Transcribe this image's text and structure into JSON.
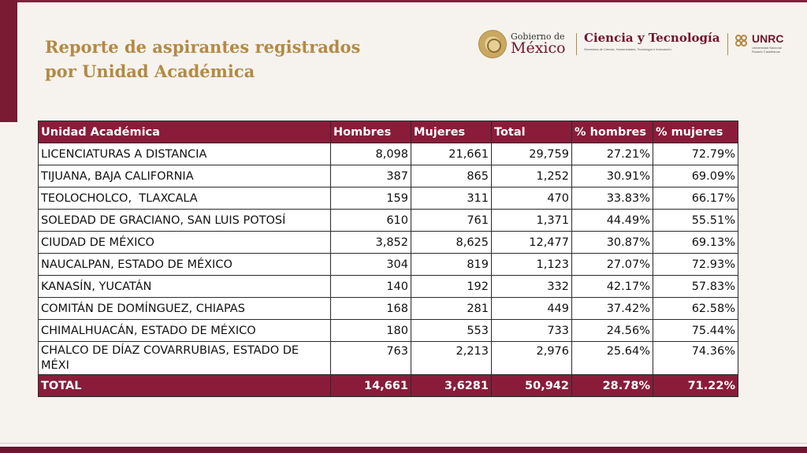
{
  "title": {
    "line1": "Reporte de aspirantes registrados",
    "line2": "por Unidad Académica"
  },
  "logos": {
    "gobierno_small": "Gobierno de",
    "gobierno_big": "México",
    "ciencia": "Ciencia y Tecnología",
    "ciencia_sub": "Secretaría de Ciencia, Humanidades, Tecnología e Innovación",
    "unrc": "UNRC",
    "unrc_sub_1": "Universidad Nacional",
    "unrc_sub_2": "Rosario Castellanos"
  },
  "table": {
    "headers": [
      "Unidad Académica",
      "Hombres",
      "Mujeres",
      "Total",
      "% hombres",
      "% mujeres"
    ],
    "rows": [
      [
        "LICENCIATURAS A DISTANCIA",
        "8,098",
        "21,661",
        "29,759",
        "27.21%",
        "72.79%"
      ],
      [
        "TIJUANA, BAJA CALIFORNIA",
        "387",
        "865",
        "1,252",
        "30.91%",
        "69.09%"
      ],
      [
        "TEOLOCHOLCO,  TLAXCALA",
        "159",
        "311",
        "470",
        "33.83%",
        "66.17%"
      ],
      [
        "SOLEDAD DE GRACIANO, SAN LUIS POTOSÍ",
        "610",
        "761",
        "1,371",
        "44.49%",
        "55.51%"
      ],
      [
        "CIUDAD DE MÉXICO",
        "3,852",
        "8,625",
        "12,477",
        "30.87%",
        "69.13%"
      ],
      [
        "NAUCALPAN, ESTADO DE MÉXICO",
        "304",
        "819",
        "1,123",
        "27.07%",
        "72.93%"
      ],
      [
        "KANASÍN, YUCATÁN",
        "140",
        "192",
        "332",
        "42.17%",
        "57.83%"
      ],
      [
        "COMITÁN DE DOMÍNGUEZ, CHIAPAS",
        "168",
        "281",
        "449",
        "37.42%",
        "62.58%"
      ],
      [
        "CHIMALHUACÁN, ESTADO DE MÉXICO",
        "180",
        "553",
        "733",
        "24.56%",
        "75.44%"
      ],
      [
        "CHALCO DE DÍAZ COVARRUBIAS, ESTADO DE MÉXI",
        "763",
        "2,213",
        "2,976",
        "25.64%",
        "74.36%"
      ]
    ],
    "total": [
      "TOTAL",
      "14,661",
      "3,6281",
      "50,942",
      "28.78%",
      "71.22%"
    ]
  }
}
